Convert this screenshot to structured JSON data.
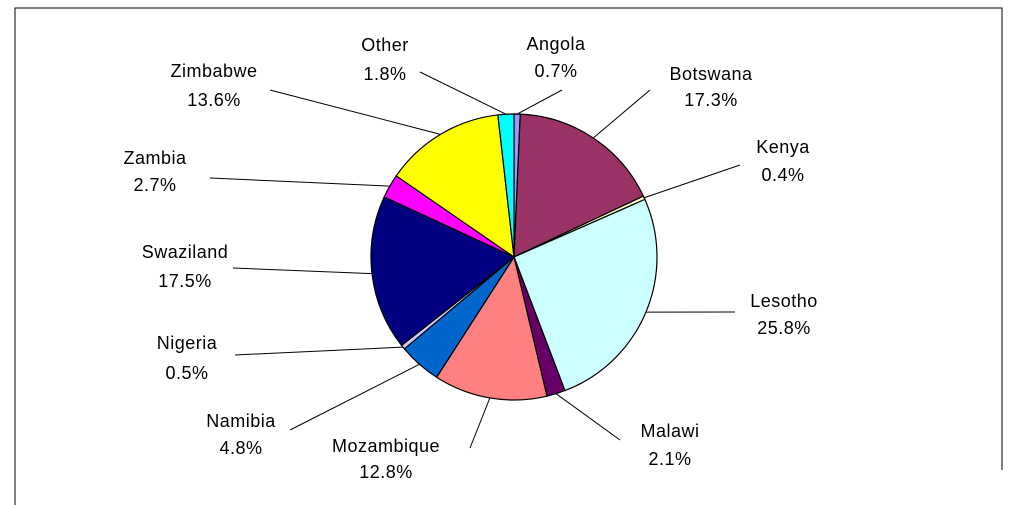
{
  "chart_data": {
    "type": "pie",
    "categories": [
      "Angola",
      "Botswana",
      "Kenya",
      "Lesotho",
      "Malawi",
      "Mozambique",
      "Namibia",
      "Nigeria",
      "Swaziland",
      "Zambia",
      "Zimbabwe",
      "Other"
    ],
    "values": [
      0.7,
      17.3,
      0.4,
      25.8,
      2.1,
      12.8,
      4.8,
      0.5,
      17.5,
      2.7,
      13.6,
      1.8
    ],
    "value_labels": [
      "0.7%",
      "17.3%",
      "0.4%",
      "25.8%",
      "2.1%",
      "12.8%",
      "4.8%",
      "0.5%",
      "17.5%",
      "2.7%",
      "13.6%",
      "1.8%"
    ],
    "colors": [
      "#9999ff",
      "#993366",
      "#ffffcc",
      "#ccffff",
      "#660066",
      "#ff8080",
      "#0066cc",
      "#ccccff",
      "#000080",
      "#ff00ff",
      "#ffff00",
      "#00ffff"
    ]
  }
}
